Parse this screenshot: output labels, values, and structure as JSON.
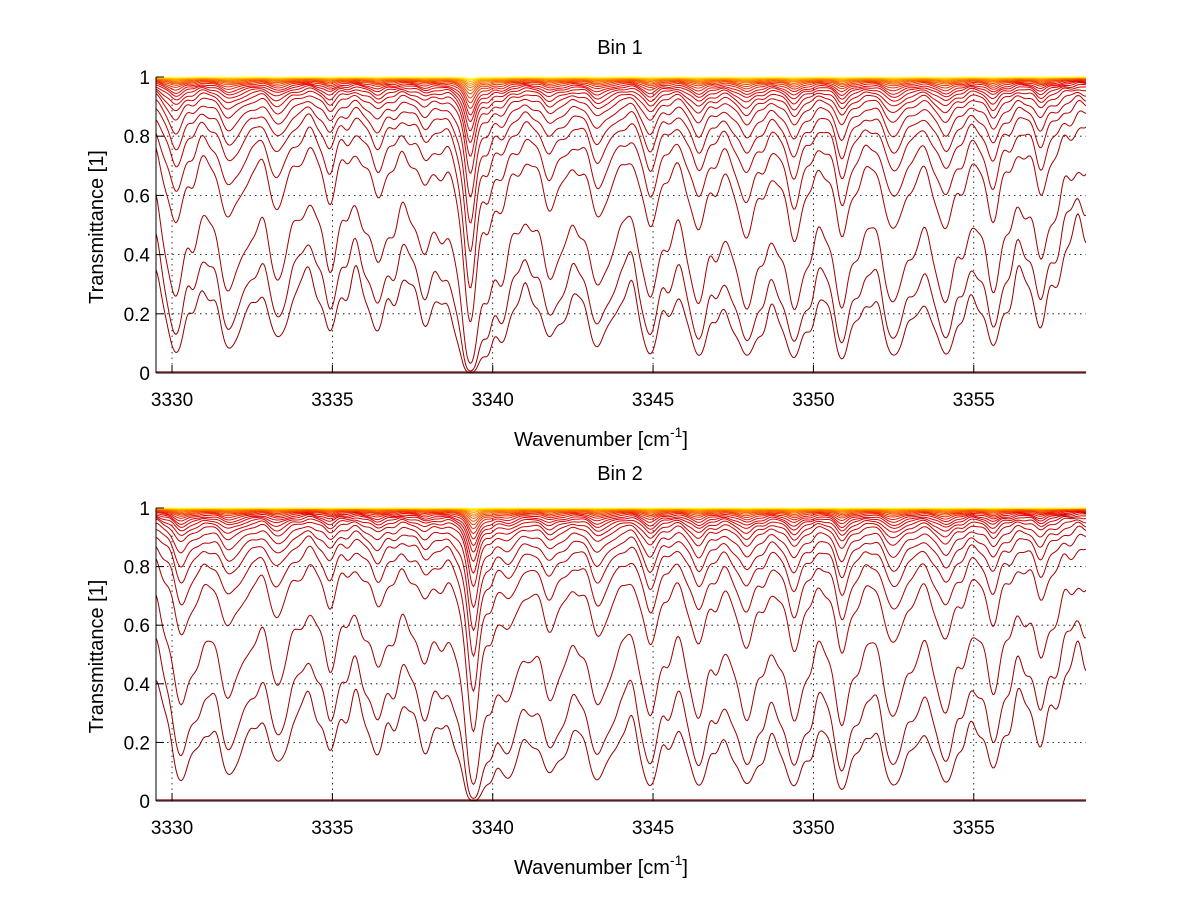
{
  "chart_data": [
    {
      "type": "line",
      "title": "Bin 1",
      "xlabel": "Wavenumber [cm",
      "xlabel_sup": "-1",
      "xlabel_tail": "]",
      "ylabel": "Transmittance [1]",
      "xlim": [
        3329.5,
        3358.5
      ],
      "ylim": [
        0,
        1
      ],
      "x_ticks": [
        3330,
        3335,
        3340,
        3345,
        3350,
        3355
      ],
      "x_tick_labels": [
        "3330",
        "3335",
        "3340",
        "3345",
        "3350",
        "3355"
      ],
      "y_ticks": [
        0,
        0.2,
        0.4,
        0.6,
        0.8,
        1
      ],
      "y_tick_labels": [
        "0",
        "0.2",
        "0.4",
        "0.6",
        "0.8",
        "1"
      ],
      "grid": true,
      "series_count": 26,
      "absorption_lines": [
        {
          "x": 3330.1,
          "depth": 1.0
        },
        {
          "x": 3331.8,
          "depth": 0.9
        },
        {
          "x": 3333.3,
          "depth": 0.75
        },
        {
          "x": 3334.9,
          "depth": 0.65
        },
        {
          "x": 3336.4,
          "depth": 0.6
        },
        {
          "x": 3337.9,
          "depth": 0.45
        },
        {
          "x": 3339.3,
          "depth": 3.0
        },
        {
          "x": 3340.3,
          "depth": 0.55
        },
        {
          "x": 3341.8,
          "depth": 0.7
        },
        {
          "x": 3343.3,
          "depth": 0.85
        },
        {
          "x": 3344.9,
          "depth": 1.0
        },
        {
          "x": 3346.4,
          "depth": 1.0
        },
        {
          "x": 3347.9,
          "depth": 1.05
        },
        {
          "x": 3349.4,
          "depth": 1.1
        },
        {
          "x": 3350.9,
          "depth": 1.1
        },
        {
          "x": 3352.5,
          "depth": 1.05
        },
        {
          "x": 3354.1,
          "depth": 1.0
        },
        {
          "x": 3355.6,
          "depth": 0.85
        },
        {
          "x": 3357.1,
          "depth": 0.6
        }
      ],
      "series_baseline": [
        0.005,
        0.02,
        0.05,
        0.13,
        0.35,
        0.47,
        0.58,
        0.66,
        0.73,
        0.79,
        0.83,
        0.86,
        0.885,
        0.905,
        0.92,
        0.935,
        0.947,
        0.957,
        0.965,
        0.972,
        0.978,
        0.983,
        0.987,
        0.991,
        0.994,
        0.997
      ]
    },
    {
      "type": "line",
      "title": "Bin 2",
      "xlabel": "Wavenumber [cm",
      "xlabel_sup": "-1",
      "xlabel_tail": "]",
      "ylabel": "Transmittance [1]",
      "xlim": [
        3329.5,
        3358.5
      ],
      "ylim": [
        0,
        1
      ],
      "x_ticks": [
        3330,
        3335,
        3340,
        3345,
        3350,
        3355
      ],
      "x_tick_labels": [
        "3330",
        "3335",
        "3340",
        "3345",
        "3350",
        "3355"
      ],
      "y_ticks": [
        0,
        0.2,
        0.4,
        0.6,
        0.8,
        1
      ],
      "y_tick_labels": [
        "0",
        "0.2",
        "0.4",
        "0.6",
        "0.8",
        "1"
      ],
      "grid": true,
      "series_count": 26,
      "absorption_lines": [
        {
          "x": 3330.3,
          "depth": 1.0
        },
        {
          "x": 3331.8,
          "depth": 0.85
        },
        {
          "x": 3333.3,
          "depth": 0.7
        },
        {
          "x": 3334.9,
          "depth": 0.55
        },
        {
          "x": 3336.4,
          "depth": 0.55
        },
        {
          "x": 3337.9,
          "depth": 0.45
        },
        {
          "x": 3339.4,
          "depth": 3.0
        },
        {
          "x": 3340.5,
          "depth": 0.75
        },
        {
          "x": 3341.8,
          "depth": 0.8
        },
        {
          "x": 3343.3,
          "depth": 0.95
        },
        {
          "x": 3344.9,
          "depth": 1.1
        },
        {
          "x": 3346.4,
          "depth": 1.05
        },
        {
          "x": 3347.9,
          "depth": 1.05
        },
        {
          "x": 3349.4,
          "depth": 1.1
        },
        {
          "x": 3350.9,
          "depth": 1.2
        },
        {
          "x": 3352.5,
          "depth": 1.1
        },
        {
          "x": 3354.1,
          "depth": 1.0
        },
        {
          "x": 3355.6,
          "depth": 0.75
        },
        {
          "x": 3357.1,
          "depth": 0.5
        }
      ],
      "series_baseline": [
        0.005,
        0.02,
        0.06,
        0.18,
        0.42,
        0.55,
        0.65,
        0.72,
        0.78,
        0.83,
        0.86,
        0.885,
        0.905,
        0.92,
        0.935,
        0.947,
        0.957,
        0.965,
        0.972,
        0.978,
        0.983,
        0.987,
        0.991,
        0.994,
        0.997,
        0.999
      ]
    }
  ],
  "colors": {
    "low_series": "#8b0000",
    "mid_series": "#e60000",
    "high_series": "#ffa500",
    "top_series": "#ffff00",
    "grid": "#000000",
    "axes": "#000000"
  }
}
